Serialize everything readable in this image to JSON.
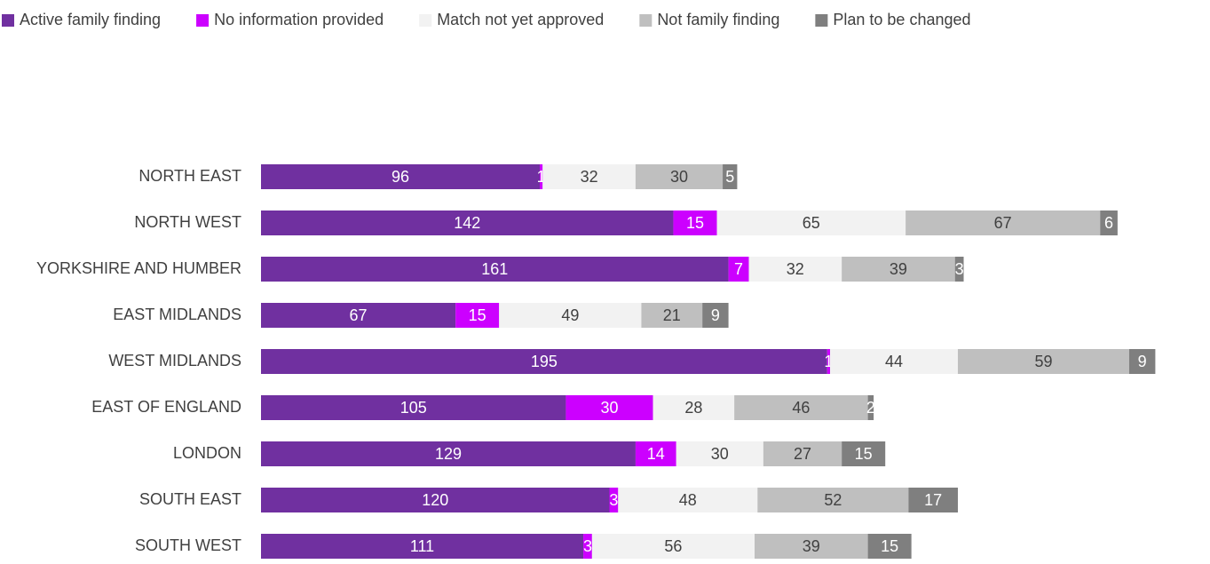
{
  "chart_data": {
    "type": "stacked-bar-horizontal",
    "categories": [
      "NORTH EAST",
      "NORTH WEST",
      "YORKSHIRE AND HUMBER",
      "EAST MIDLANDS",
      "WEST MIDLANDS",
      "EAST OF ENGLAND",
      "LONDON",
      "SOUTH EAST",
      "SOUTH WEST"
    ],
    "series": [
      {
        "name": "Active family finding",
        "color": "#7030a0",
        "values": [
          96,
          142,
          161,
          67,
          195,
          105,
          129,
          120,
          111
        ]
      },
      {
        "name": "No information provided",
        "color": "#cc00ff",
        "values": [
          1,
          15,
          7,
          15,
          1,
          30,
          14,
          3,
          3
        ]
      },
      {
        "name": "Match not yet approved",
        "color": "#f2f2f2",
        "values": [
          32,
          65,
          32,
          49,
          44,
          28,
          30,
          48,
          56
        ]
      },
      {
        "name": "Not family finding",
        "color": "#bfbfbf",
        "values": [
          30,
          67,
          39,
          21,
          59,
          46,
          27,
          52,
          39
        ]
      },
      {
        "name": "Plan to be changed",
        "color": "#7f7f7f",
        "values": [
          5,
          6,
          3,
          9,
          9,
          2,
          15,
          17,
          15
        ]
      }
    ],
    "xlim": [
      0,
      325
    ],
    "legend": "top"
  }
}
